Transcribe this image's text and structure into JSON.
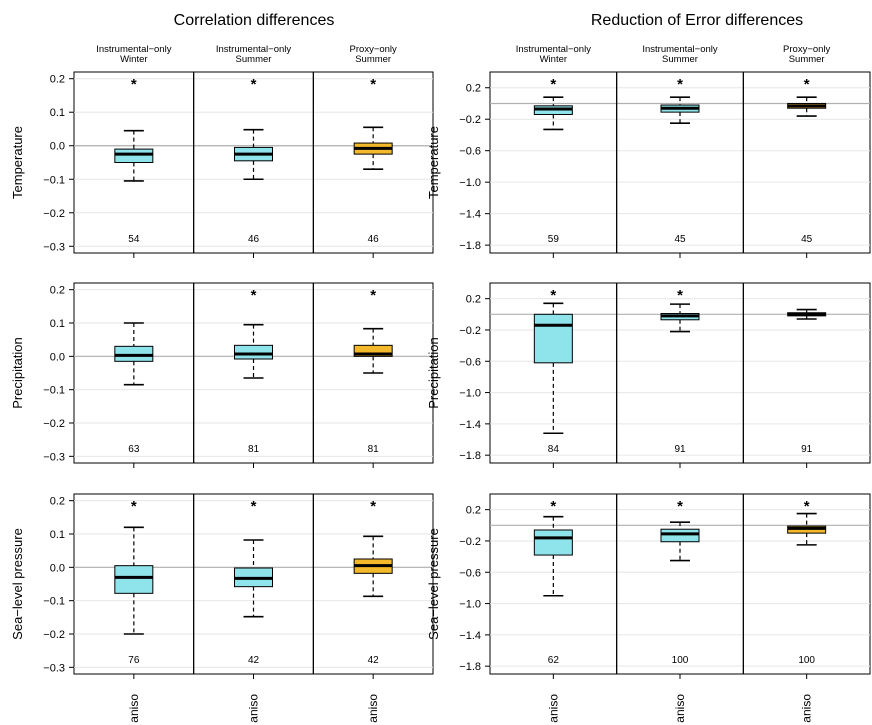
{
  "figure": {
    "titles": [
      "Correlation differences",
      "Reduction of Error differences"
    ],
    "column_labels": [
      "Instrumental−only\nWinter",
      "Instrumental−only\nSummer",
      "Proxy−only\nSummer"
    ],
    "row_labels": [
      "Temperature",
      "Precipitation",
      "Sea−level pressure"
    ],
    "x_tick_label": "aniso",
    "significance_marker": "*",
    "colors": {
      "cyan": "#8fe3ea",
      "orange": "#f4b92a",
      "grid": "#e6e6e6",
      "zero_line": "#b0b0b0"
    }
  },
  "chart_data": [
    {
      "type": "boxplot",
      "title": "Correlation differences",
      "variable": "Temperature",
      "yticks": [
        0.2,
        0.1,
        0.0,
        -0.1,
        -0.2,
        -0.3
      ],
      "ylim": [
        -0.32,
        0.22
      ],
      "boxes": [
        {
          "group": "Instrumental−only Winter",
          "whisker_low": -0.105,
          "q1": -0.05,
          "median": -0.025,
          "q3": -0.01,
          "whisker_high": 0.045,
          "n": 54,
          "sig": true,
          "color": "#8fe3ea"
        },
        {
          "group": "Instrumental−only Summer",
          "whisker_low": -0.1,
          "q1": -0.045,
          "median": -0.025,
          "q3": -0.005,
          "whisker_high": 0.048,
          "n": 46,
          "sig": true,
          "color": "#8fe3ea"
        },
        {
          "group": "Proxy−only Summer",
          "whisker_low": -0.07,
          "q1": -0.025,
          "median": -0.008,
          "q3": 0.008,
          "whisker_high": 0.055,
          "n": 46,
          "sig": true,
          "color": "#f4b92a"
        }
      ]
    },
    {
      "type": "boxplot",
      "title": "Reduction of Error differences",
      "variable": "Temperature",
      "yticks": [
        0.2,
        -0.2,
        -0.6,
        -1.0,
        -1.4,
        -1.8
      ],
      "ylim": [
        -1.9,
        0.4
      ],
      "boxes": [
        {
          "group": "Instrumental−only Winter",
          "whisker_low": -0.33,
          "q1": -0.14,
          "median": -0.07,
          "q3": -0.03,
          "whisker_high": 0.08,
          "n": 59,
          "sig": true,
          "color": "#8fe3ea"
        },
        {
          "group": "Instrumental−only Summer",
          "whisker_low": -0.25,
          "q1": -0.11,
          "median": -0.06,
          "q3": -0.02,
          "whisker_high": 0.08,
          "n": 45,
          "sig": true,
          "color": "#8fe3ea"
        },
        {
          "group": "Proxy−only Summer",
          "whisker_low": -0.16,
          "q1": -0.06,
          "median": -0.03,
          "q3": 0.0,
          "whisker_high": 0.08,
          "n": 45,
          "sig": true,
          "color": "#f4b92a"
        }
      ]
    },
    {
      "type": "boxplot",
      "title": "Correlation differences",
      "variable": "Precipitation",
      "yticks": [
        0.2,
        0.1,
        0.0,
        -0.1,
        -0.2,
        -0.3
      ],
      "ylim": [
        -0.32,
        0.22
      ],
      "boxes": [
        {
          "group": "Instrumental−only Winter",
          "whisker_low": -0.085,
          "q1": -0.015,
          "median": 0.003,
          "q3": 0.03,
          "whisker_high": 0.1,
          "n": 63,
          "sig": false,
          "color": "#8fe3ea"
        },
        {
          "group": "Instrumental−only Summer",
          "whisker_low": -0.065,
          "q1": -0.008,
          "median": 0.007,
          "q3": 0.033,
          "whisker_high": 0.095,
          "n": 81,
          "sig": true,
          "color": "#8fe3ea"
        },
        {
          "group": "Proxy−only Summer",
          "whisker_low": -0.05,
          "q1": 0.0,
          "median": 0.007,
          "q3": 0.033,
          "whisker_high": 0.083,
          "n": 81,
          "sig": true,
          "color": "#f4b92a"
        }
      ]
    },
    {
      "type": "boxplot",
      "title": "Reduction of Error differences",
      "variable": "Precipitation",
      "yticks": [
        0.2,
        -0.2,
        -0.6,
        -1.0,
        -1.4,
        -1.8
      ],
      "ylim": [
        -1.9,
        0.4
      ],
      "boxes": [
        {
          "group": "Instrumental−only Winter",
          "whisker_low": -1.52,
          "q1": -0.62,
          "median": -0.14,
          "q3": 0.0,
          "whisker_high": 0.14,
          "n": 84,
          "sig": true,
          "color": "#8fe3ea"
        },
        {
          "group": "Instrumental−only Summer",
          "whisker_low": -0.22,
          "q1": -0.07,
          "median": -0.02,
          "q3": 0.01,
          "whisker_high": 0.13,
          "n": 91,
          "sig": true,
          "color": "#8fe3ea"
        },
        {
          "group": "Proxy−only Summer",
          "whisker_low": -0.06,
          "q1": -0.02,
          "median": 0.0,
          "q3": 0.02,
          "whisker_high": 0.06,
          "n": 91,
          "sig": false,
          "color": "#8fe3ea"
        }
      ]
    },
    {
      "type": "boxplot",
      "title": "Correlation differences",
      "variable": "Sea−level pressure",
      "yticks": [
        0.2,
        0.1,
        0.0,
        -0.1,
        -0.2,
        -0.3
      ],
      "ylim": [
        -0.32,
        0.22
      ],
      "boxes": [
        {
          "group": "Instrumental−only Winter",
          "whisker_low": -0.2,
          "q1": -0.078,
          "median": -0.03,
          "q3": 0.005,
          "whisker_high": 0.12,
          "n": 76,
          "sig": true,
          "color": "#8fe3ea"
        },
        {
          "group": "Instrumental−only Summer",
          "whisker_low": -0.148,
          "q1": -0.058,
          "median": -0.033,
          "q3": -0.002,
          "whisker_high": 0.082,
          "n": 42,
          "sig": true,
          "color": "#8fe3ea"
        },
        {
          "group": "Proxy−only Summer",
          "whisker_low": -0.087,
          "q1": -0.018,
          "median": 0.005,
          "q3": 0.025,
          "whisker_high": 0.093,
          "n": 42,
          "sig": true,
          "color": "#f4b92a"
        }
      ]
    },
    {
      "type": "boxplot",
      "title": "Reduction of Error differences",
      "variable": "Sea−level pressure",
      "yticks": [
        0.2,
        -0.2,
        -0.6,
        -1.0,
        -1.4,
        -1.8
      ],
      "ylim": [
        -1.9,
        0.4
      ],
      "boxes": [
        {
          "group": "Instrumental−only Winter",
          "whisker_low": -0.9,
          "q1": -0.38,
          "median": -0.16,
          "q3": -0.06,
          "whisker_high": 0.11,
          "n": 62,
          "sig": true,
          "color": "#8fe3ea"
        },
        {
          "group": "Instrumental−only Summer",
          "whisker_low": -0.45,
          "q1": -0.21,
          "median": -0.11,
          "q3": -0.05,
          "whisker_high": 0.04,
          "n": 100,
          "sig": true,
          "color": "#8fe3ea"
        },
        {
          "group": "Proxy−only Summer",
          "whisker_low": -0.25,
          "q1": -0.1,
          "median": -0.04,
          "q3": -0.01,
          "whisker_high": 0.15,
          "n": 100,
          "sig": true,
          "color": "#f4b92a"
        }
      ]
    }
  ]
}
